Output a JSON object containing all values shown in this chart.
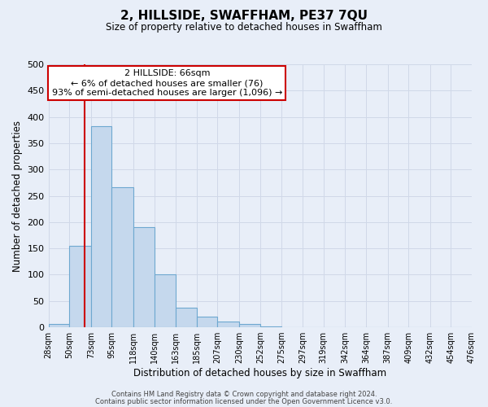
{
  "title": "2, HILLSIDE, SWAFFHAM, PE37 7QU",
  "subtitle": "Size of property relative to detached houses in Swaffham",
  "xlabel": "Distribution of detached houses by size in Swaffham",
  "ylabel": "Number of detached properties",
  "bar_edges": [
    28,
    50,
    73,
    95,
    118,
    140,
    163,
    185,
    207,
    230,
    252,
    275,
    297,
    319,
    342,
    364,
    387,
    409,
    432,
    454,
    476
  ],
  "bar_values": [
    7,
    155,
    383,
    267,
    190,
    101,
    37,
    21,
    11,
    6,
    2,
    0,
    0,
    0,
    0,
    0,
    0,
    0,
    0,
    0
  ],
  "tick_labels": [
    "28sqm",
    "50sqm",
    "73sqm",
    "95sqm",
    "118sqm",
    "140sqm",
    "163sqm",
    "185sqm",
    "207sqm",
    "230sqm",
    "252sqm",
    "275sqm",
    "297sqm",
    "319sqm",
    "342sqm",
    "364sqm",
    "387sqm",
    "409sqm",
    "432sqm",
    "454sqm",
    "476sqm"
  ],
  "ylim": [
    0,
    500
  ],
  "yticks": [
    0,
    50,
    100,
    150,
    200,
    250,
    300,
    350,
    400,
    450,
    500
  ],
  "bar_color": "#c5d8ed",
  "bar_edge_color": "#6ea8d0",
  "grid_color": "#d0d8e8",
  "background_color": "#e8eef8",
  "red_line_x": 66,
  "annotation_text": "2 HILLSIDE: 66sqm\n← 6% of detached houses are smaller (76)\n93% of semi-detached houses are larger (1,096) →",
  "annotation_box_color": "#ffffff",
  "annotation_border_color": "#cc0000",
  "footer_line1": "Contains HM Land Registry data © Crown copyright and database right 2024.",
  "footer_line2": "Contains public sector information licensed under the Open Government Licence v3.0."
}
